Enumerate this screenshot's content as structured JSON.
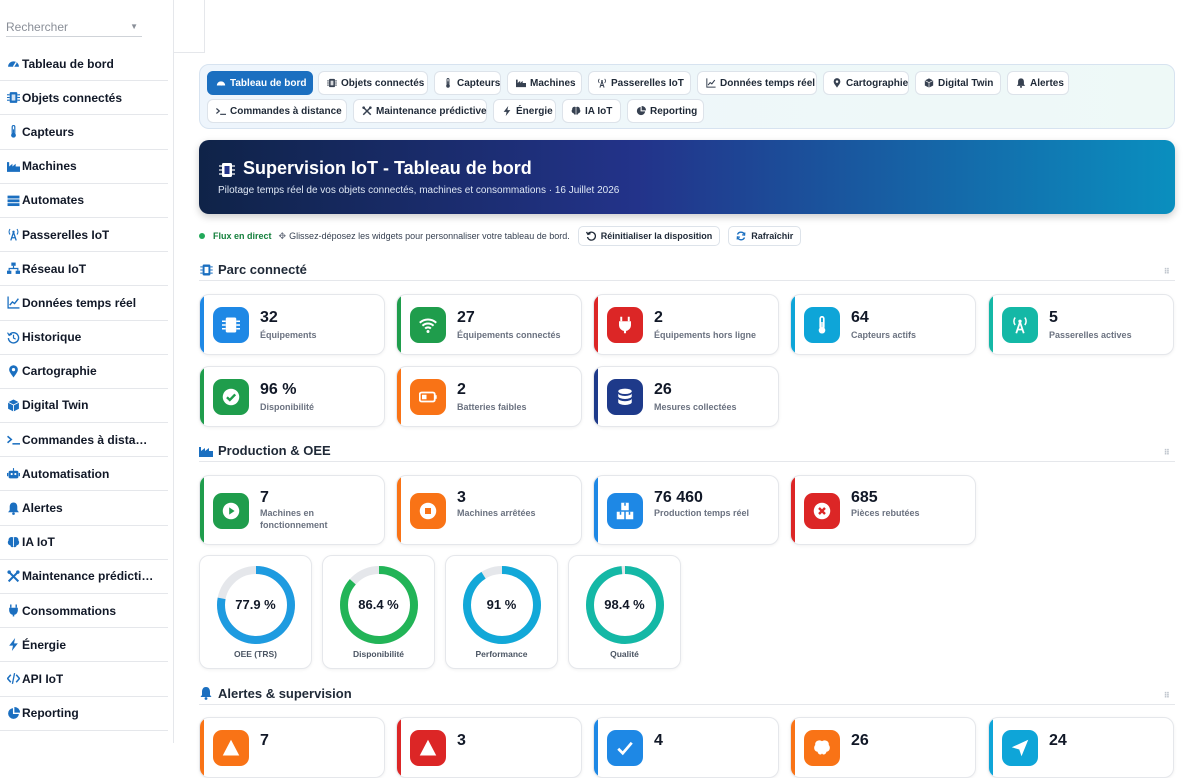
{
  "search": {
    "placeholder": "Rechercher"
  },
  "sidebar": {
    "items": [
      {
        "label": "Tableau de bord",
        "icon": "gauge-icon"
      },
      {
        "label": "Objets connectés",
        "icon": "chip-icon"
      },
      {
        "label": "Capteurs",
        "icon": "thermometer-icon"
      },
      {
        "label": "Machines",
        "icon": "factory-icon"
      },
      {
        "label": "Automates",
        "icon": "server-icon"
      },
      {
        "label": "Passerelles IoT",
        "icon": "antenna-icon"
      },
      {
        "label": "Réseau IoT",
        "icon": "network-icon"
      },
      {
        "label": "Données temps réel",
        "icon": "line-chart-icon"
      },
      {
        "label": "Historique",
        "icon": "history-icon"
      },
      {
        "label": "Cartographie",
        "icon": "map-pin-icon"
      },
      {
        "label": "Digital Twin",
        "icon": "cube-icon"
      },
      {
        "label": "Commandes à dista…",
        "icon": "terminal-icon"
      },
      {
        "label": "Automatisation",
        "icon": "robot-icon"
      },
      {
        "label": "Alertes",
        "icon": "bell-icon"
      },
      {
        "label": "IA IoT",
        "icon": "brain-icon"
      },
      {
        "label": "Maintenance prédicti…",
        "icon": "tools-icon"
      },
      {
        "label": "Consommations",
        "icon": "plug-icon"
      },
      {
        "label": "Énergie",
        "icon": "bolt-icon"
      },
      {
        "label": "API IoT",
        "icon": "code-icon"
      },
      {
        "label": "Reporting",
        "icon": "pie-chart-icon"
      }
    ]
  },
  "tabs": [
    {
      "label": "Tableau de bord",
      "icon": "gauge-icon",
      "active": true
    },
    {
      "label": "Objets connectés",
      "icon": "chip-icon"
    },
    {
      "label": "Capteurs",
      "icon": "thermometer-icon"
    },
    {
      "label": "Machines",
      "icon": "factory-icon"
    },
    {
      "label": "Passerelles IoT",
      "icon": "antenna-icon"
    },
    {
      "label": "Données temps réel",
      "icon": "line-chart-icon"
    },
    {
      "label": "Cartographie",
      "icon": "map-pin-icon"
    },
    {
      "label": "Digital Twin",
      "icon": "cube-icon"
    },
    {
      "label": "Alertes",
      "icon": "bell-icon"
    },
    {
      "label": "Commandes à distance",
      "icon": "terminal-icon"
    },
    {
      "label": "Maintenance prédictive",
      "icon": "tools-icon"
    },
    {
      "label": "Énergie",
      "icon": "bolt-icon"
    },
    {
      "label": "IA IoT",
      "icon": "brain-icon"
    },
    {
      "label": "Reporting",
      "icon": "pie-chart-icon"
    }
  ],
  "hero": {
    "title": "Supervision IoT - Tableau de bord",
    "subtitle": "Pilotage temps réel de vos objets connectés, machines et consommations · 16 Juillet 2026"
  },
  "status": {
    "live": "Flux en direct",
    "hint": "Glissez-déposez les widgets pour personnaliser votre tableau de bord.",
    "reset": "Réinitialiser la disposition",
    "refresh": "Rafraîchir"
  },
  "sections": {
    "parc": "Parc connecté",
    "production": "Production & OEE",
    "alertes": "Alertes & supervision"
  },
  "parc_cards": [
    {
      "value": "32",
      "label": "Équipements",
      "color": "#1e88e5",
      "icon": "chip-icon"
    },
    {
      "value": "27",
      "label": "Équipements connectés",
      "color": "#1f9d4c",
      "icon": "wifi-icon"
    },
    {
      "value": "2",
      "label": "Équipements hors ligne",
      "color": "#dc2626",
      "icon": "plug-icon"
    },
    {
      "value": "64",
      "label": "Capteurs actifs",
      "color": "#0ea5d8",
      "icon": "thermometer-icon"
    },
    {
      "value": "5",
      "label": "Passerelles actives",
      "color": "#14b8a6",
      "icon": "antenna-icon"
    },
    {
      "value": "96 %",
      "label": "Disponibilité",
      "color": "#1f9d4c",
      "icon": "check-circle-icon"
    },
    {
      "value": "2",
      "label": "Batteries faibles",
      "color": "#f97316",
      "icon": "battery-icon"
    },
    {
      "value": "26",
      "label": "Mesures collectées",
      "color": "#1e3a8a",
      "icon": "database-icon"
    }
  ],
  "production_cards": [
    {
      "value": "7",
      "label": "Machines en fonctionnement",
      "color": "#1f9d4c",
      "icon": "play-icon"
    },
    {
      "value": "3",
      "label": "Machines arrêtées",
      "color": "#f97316",
      "icon": "stop-icon"
    },
    {
      "value": "76 460",
      "label": "Production temps réel",
      "color": "#1e88e5",
      "icon": "boxes-icon"
    },
    {
      "value": "685",
      "label": "Pièces rebutées",
      "color": "#dc2626",
      "icon": "x-circle-icon"
    }
  ],
  "gauges": [
    {
      "value_text": "77.9 %",
      "value": 77.9,
      "label": "OEE (TRS)",
      "color": "#1e9be0"
    },
    {
      "value_text": "86.4 %",
      "value": 86.4,
      "label": "Disponibilité",
      "color": "#22b457"
    },
    {
      "value_text": "91 %",
      "value": 91,
      "label": "Performance",
      "color": "#12a8d8"
    },
    {
      "value_text": "98.4 %",
      "value": 98.4,
      "label": "Qualité",
      "color": "#14b8a6"
    }
  ],
  "alert_cards": [
    {
      "value": "7",
      "color": "#f97316",
      "icon": "warning-icon"
    },
    {
      "value": "3",
      "color": "#dc2626",
      "icon": "alarm-icon"
    },
    {
      "value": "4",
      "color": "#1e88e5",
      "icon": "check-icon"
    },
    {
      "value": "26",
      "color": "#f97316",
      "icon": "brain-icon"
    },
    {
      "value": "24",
      "color": "#0ea5d8",
      "icon": "send-icon"
    }
  ]
}
